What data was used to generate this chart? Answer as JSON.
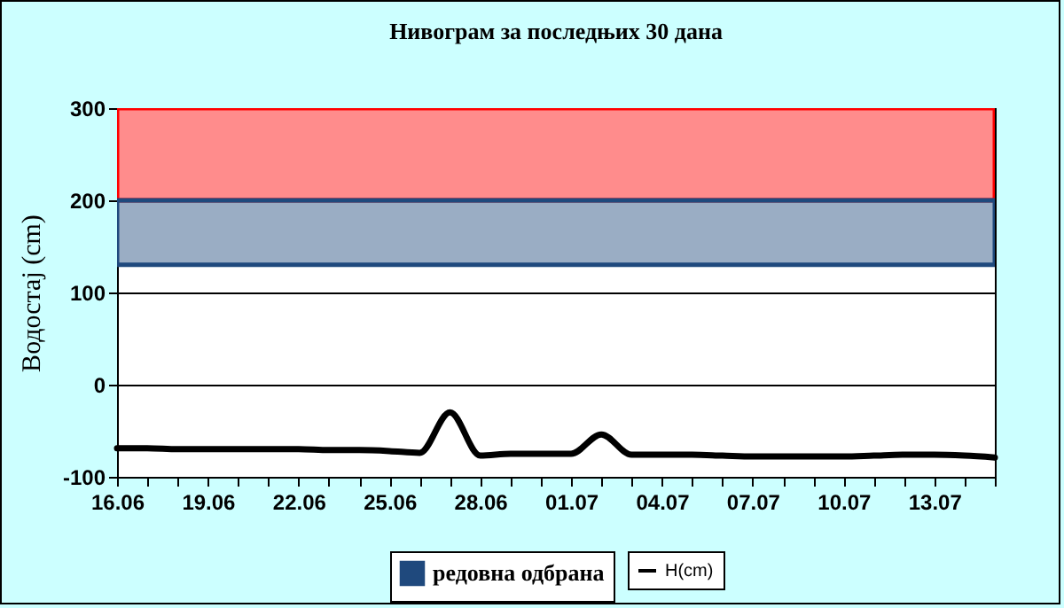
{
  "chart_data": {
    "type": "line",
    "title": "Нивограм за последњих 30 дана",
    "ylabel": "Водостај (cm)",
    "x": [
      "--06-16",
      "--06-17",
      "--06-18",
      "--06-19",
      "--06-20",
      "--06-21",
      "--06-22",
      "--06-23",
      "--06-24",
      "--06-25",
      "--06-26",
      "--06-27",
      "--06-28",
      "--06-29",
      "--06-30",
      "--07-01",
      "--07-02",
      "--07-03",
      "--07-04",
      "--07-05",
      "--07-06",
      "--07-07",
      "--07-08",
      "--07-09",
      "--07-10",
      "--07-11",
      "--07-12",
      "--07-13",
      "--07-14",
      "--07-15"
    ],
    "series": [
      {
        "name": "H(cm)",
        "color": "#000000",
        "values": [
          -69,
          -69,
          -70,
          -70,
          -70,
          -70,
          -70,
          -71,
          -71,
          -72,
          -74,
          -30,
          -77,
          -75,
          -75,
          -75,
          -54,
          -76,
          -76,
          -76,
          -77,
          -78,
          -78,
          -78,
          -78,
          -77,
          -76,
          -76,
          -77,
          -79
        ]
      }
    ],
    "bands": [
      {
        "axis": "y",
        "from": 200,
        "to": 300,
        "color": "#ff0000"
      },
      {
        "axis": "y",
        "from": 130,
        "to": 200,
        "label": "редовна одбрана",
        "color": "#1f497d"
      }
    ],
    "xlim": [
      "--06-16",
      "--07-15"
    ],
    "xticks": [
      {
        "value": "--06-16",
        "label": "16.06"
      },
      {
        "value": "--06-17",
        "label": null
      },
      {
        "value": "--06-18",
        "label": null
      },
      {
        "value": "--06-19",
        "label": "19.06"
      },
      {
        "value": "--06-20",
        "label": null
      },
      {
        "value": "--06-21",
        "label": null
      },
      {
        "value": "--06-22",
        "label": "22.06"
      },
      {
        "value": "--06-23",
        "label": null
      },
      {
        "value": "--06-24",
        "label": null
      },
      {
        "value": "--06-25",
        "label": "25.06"
      },
      {
        "value": "--06-26",
        "label": null
      },
      {
        "value": "--06-27",
        "label": null
      },
      {
        "value": "--06-28",
        "label": "28.06"
      },
      {
        "value": "--06-29",
        "label": null
      },
      {
        "value": "--06-30",
        "label": null
      },
      {
        "value": "--07-01",
        "label": "01.07"
      },
      {
        "value": "--07-02",
        "label": null
      },
      {
        "value": "--07-03",
        "label": null
      },
      {
        "value": "--07-04",
        "label": "04.07"
      },
      {
        "value": "--07-05",
        "label": null
      },
      {
        "value": "--07-06",
        "label": null
      },
      {
        "value": "--07-07",
        "label": "07.07"
      },
      {
        "value": "--07-08",
        "label": null
      },
      {
        "value": "--07-09",
        "label": null
      },
      {
        "value": "--07-10",
        "label": "10.07"
      },
      {
        "value": "--07-11",
        "label": null
      },
      {
        "value": "--07-12",
        "label": null
      },
      {
        "value": "--07-13",
        "label": "13.07"
      },
      {
        "value": "--07-14",
        "label": null
      },
      {
        "value": "--07-15",
        "label": null
      }
    ],
    "ylim": [
      -100,
      300
    ],
    "yticks": [
      -100,
      0,
      100,
      200,
      300
    ],
    "grid": "y",
    "legend": "bottom",
    "marker": "none",
    "line_style": "solid"
  }
}
